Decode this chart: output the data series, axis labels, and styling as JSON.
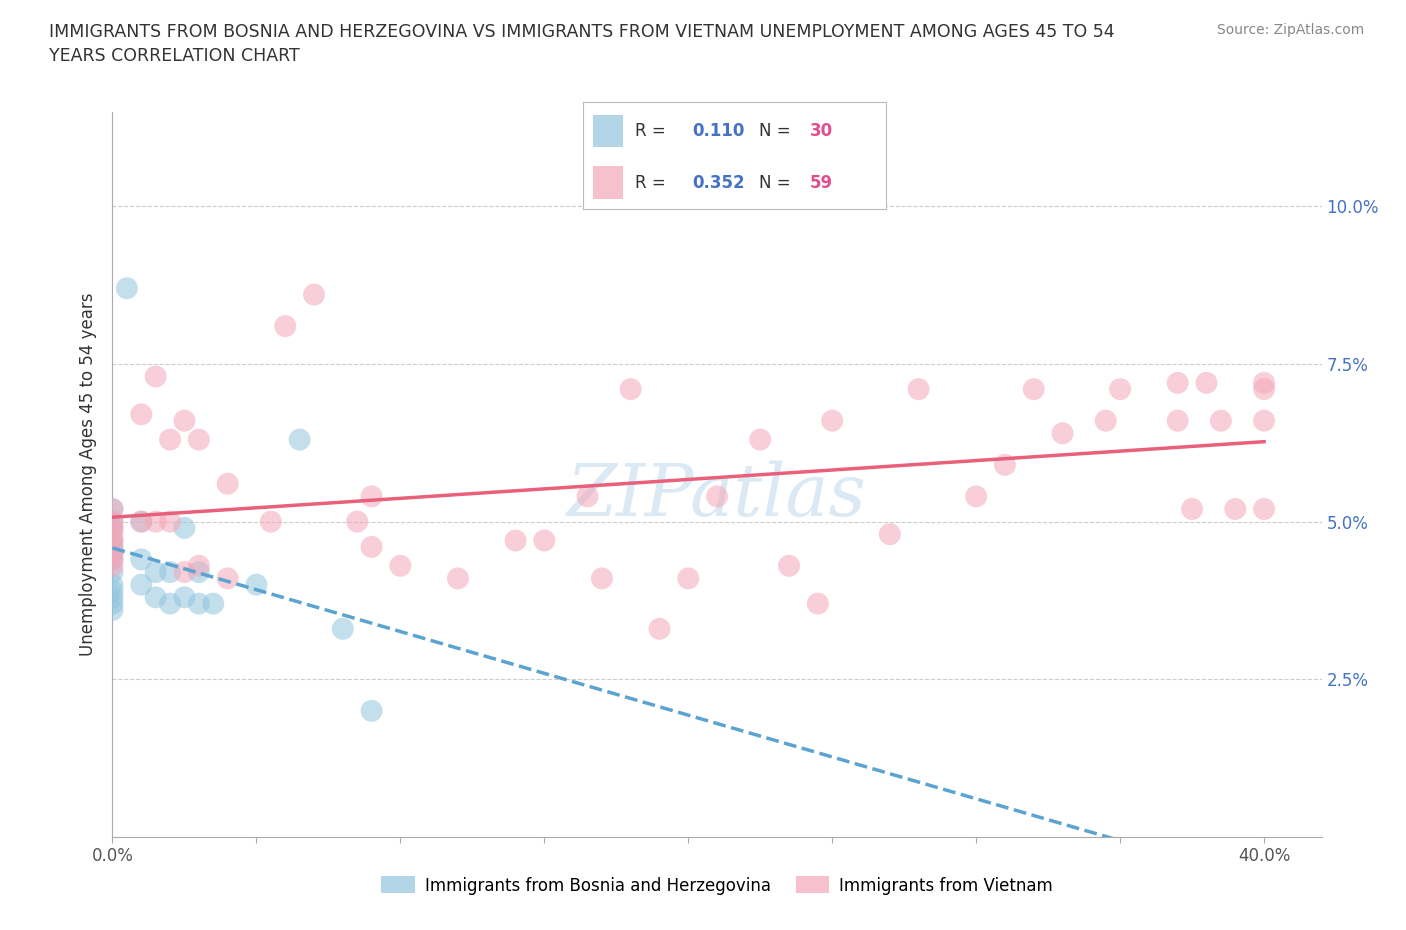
{
  "title": "IMMIGRANTS FROM BOSNIA AND HERZEGOVINA VS IMMIGRANTS FROM VIETNAM UNEMPLOYMENT AMONG AGES 45 TO 54\nYEARS CORRELATION CHART",
  "source": "Source: ZipAtlas.com",
  "ylabel": "Unemployment Among Ages 45 to 54 years",
  "xlim": [
    0.0,
    0.42
  ],
  "ylim": [
    0.0,
    0.115
  ],
  "xticks": [
    0.0,
    0.05,
    0.1,
    0.15,
    0.2,
    0.25,
    0.3,
    0.35,
    0.4
  ],
  "yticks": [
    0.0,
    0.025,
    0.05,
    0.075,
    0.1
  ],
  "yticklabels_right": [
    "",
    "2.5%",
    "5.0%",
    "7.5%",
    "10.0%"
  ],
  "bosnia_color": "#92c5de",
  "vietnam_color": "#f4a6b8",
  "bosnia_R": 0.11,
  "bosnia_N": 30,
  "vietnam_R": 0.352,
  "vietnam_N": 59,
  "bosnia_line_color": "#5ba3d0",
  "vietnam_line_color": "#e8607a",
  "r_color": "#4472c4",
  "n_color": "#e05090",
  "grid_color": "#cccccc",
  "background_color": "#ffffff",
  "watermark": "ZIPatlas",
  "bosnia_x": [
    0.005,
    0.0,
    0.0,
    0.0,
    0.0,
    0.0,
    0.0,
    0.0,
    0.0,
    0.0,
    0.0,
    0.0,
    0.0,
    0.0,
    0.01,
    0.01,
    0.01,
    0.015,
    0.015,
    0.02,
    0.02,
    0.025,
    0.025,
    0.03,
    0.03,
    0.035,
    0.05,
    0.065,
    0.08,
    0.09
  ],
  "bosnia_y": [
    0.087,
    0.052,
    0.05,
    0.049,
    0.047,
    0.046,
    0.045,
    0.044,
    0.042,
    0.04,
    0.039,
    0.038,
    0.037,
    0.036,
    0.05,
    0.044,
    0.04,
    0.042,
    0.038,
    0.042,
    0.037,
    0.049,
    0.038,
    0.042,
    0.037,
    0.037,
    0.04,
    0.063,
    0.033,
    0.02
  ],
  "vietnam_x": [
    0.0,
    0.0,
    0.0,
    0.0,
    0.0,
    0.0,
    0.0,
    0.0,
    0.0,
    0.01,
    0.01,
    0.015,
    0.015,
    0.02,
    0.02,
    0.025,
    0.025,
    0.03,
    0.03,
    0.04,
    0.04,
    0.055,
    0.06,
    0.07,
    0.085,
    0.09,
    0.09,
    0.1,
    0.12,
    0.14,
    0.15,
    0.165,
    0.17,
    0.18,
    0.19,
    0.2,
    0.21,
    0.225,
    0.235,
    0.245,
    0.25,
    0.27,
    0.28,
    0.3,
    0.31,
    0.32,
    0.33,
    0.345,
    0.35,
    0.37,
    0.37,
    0.375,
    0.38,
    0.385,
    0.39,
    0.4,
    0.4,
    0.4,
    0.4
  ],
  "vietnam_y": [
    0.052,
    0.05,
    0.049,
    0.048,
    0.047,
    0.046,
    0.045,
    0.044,
    0.043,
    0.067,
    0.05,
    0.073,
    0.05,
    0.063,
    0.05,
    0.066,
    0.042,
    0.063,
    0.043,
    0.056,
    0.041,
    0.05,
    0.081,
    0.086,
    0.05,
    0.054,
    0.046,
    0.043,
    0.041,
    0.047,
    0.047,
    0.054,
    0.041,
    0.071,
    0.033,
    0.041,
    0.054,
    0.063,
    0.043,
    0.037,
    0.066,
    0.048,
    0.071,
    0.054,
    0.059,
    0.071,
    0.064,
    0.066,
    0.071,
    0.066,
    0.072,
    0.052,
    0.072,
    0.066,
    0.052,
    0.071,
    0.066,
    0.072,
    0.052
  ]
}
